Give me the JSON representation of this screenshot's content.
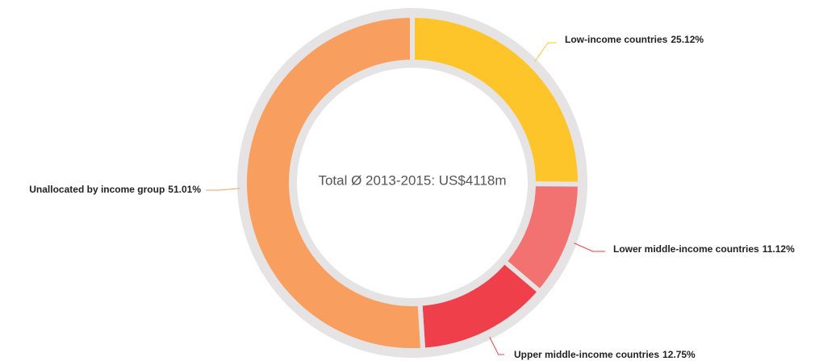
{
  "chart_data": {
    "type": "donut",
    "center_label": "Total Ø 2013-2015: US$4118m",
    "categories": [
      "Low-income countries",
      "Lower middle-income countries",
      "Upper middle-income countries",
      "Unallocated by income group"
    ],
    "values": [
      25.12,
      11.12,
      12.75,
      51.01
    ],
    "value_labels": [
      "25.12%",
      "11.12%",
      "12.75%",
      "51.01%"
    ],
    "colors": [
      "#fec52b",
      "#f27171",
      "#ef3f4a",
      "#f89e5f"
    ]
  }
}
